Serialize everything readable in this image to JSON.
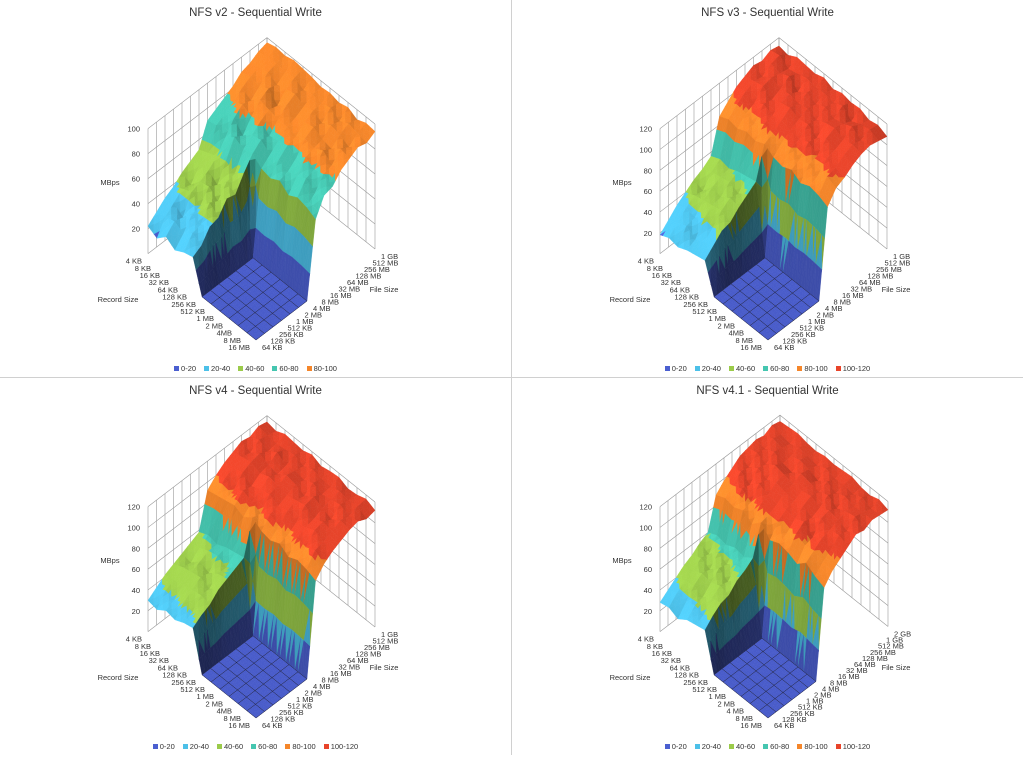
{
  "chart_data": [
    {
      "type": "surface",
      "title": "NFS v2 - Sequential Write",
      "xlabel": "File Size",
      "ylabel": "Record Size",
      "zlabel": "MBps",
      "zlim": [
        0,
        100
      ],
      "z_ticks": [
        "20",
        "40",
        "60",
        "80",
        "100"
      ],
      "record_sizes": [
        "4 KB",
        "8 KB",
        "16 KB",
        "32 KB",
        "64 KB",
        "128 KB",
        "256 KB",
        "512 KB",
        "1 MB",
        "2 MB",
        "4MB",
        "8 MB",
        "16 MB"
      ],
      "file_sizes": [
        "64 KB",
        "128 KB",
        "256 KB",
        "512 KB",
        "1 MB",
        "2 MB",
        "4 MB",
        "8 MB",
        "16 MB",
        "32 MB",
        "64 MB",
        "128 MB",
        "256 MB",
        "512 MB",
        "1 GB"
      ],
      "values": [
        [
          22,
          28,
          34,
          38,
          44,
          48,
          52,
          70,
          74,
          78,
          82,
          88,
          90,
          94,
          96
        ],
        [
          18,
          30,
          36,
          42,
          40,
          50,
          55,
          72,
          76,
          80,
          86,
          90,
          92,
          95,
          98
        ],
        [
          25,
          32,
          30,
          45,
          48,
          52,
          58,
          68,
          78,
          84,
          82,
          88,
          94,
          96,
          97
        ],
        [
          20,
          28,
          38,
          40,
          50,
          46,
          60,
          74,
          70,
          80,
          88,
          92,
          90,
          95,
          99
        ],
        [
          24,
          34,
          36,
          48,
          44,
          54,
          56,
          70,
          76,
          82,
          86,
          84,
          92,
          96,
          98
        ],
        [
          26,
          30,
          40,
          42,
          52,
          50,
          62,
          72,
          78,
          76,
          84,
          90,
          94,
          92,
          97
        ],
        [
          0,
          0,
          0,
          0,
          0,
          0,
          0,
          66,
          72,
          78,
          84,
          86,
          90,
          94,
          95
        ],
        [
          0,
          0,
          0,
          0,
          0,
          0,
          0,
          64,
          74,
          80,
          82,
          88,
          92,
          93,
          96
        ],
        [
          0,
          0,
          0,
          0,
          0,
          0,
          0,
          68,
          70,
          76,
          86,
          90,
          88,
          95,
          94
        ],
        [
          0,
          0,
          0,
          0,
          0,
          0,
          0,
          62,
          72,
          82,
          84,
          86,
          92,
          90,
          96
        ],
        [
          0,
          0,
          0,
          0,
          0,
          0,
          0,
          66,
          76,
          78,
          88,
          84,
          90,
          94,
          92
        ],
        [
          0,
          0,
          0,
          0,
          0,
          0,
          0,
          64,
          70,
          80,
          82,
          90,
          86,
          92,
          95
        ],
        [
          0,
          0,
          0,
          0,
          0,
          0,
          0,
          60,
          74,
          76,
          84,
          88,
          92,
          90,
          94
        ]
      ],
      "legend": [
        "0-20",
        "20-40",
        "40-60",
        "60-80",
        "80-100"
      ],
      "legend_position": "bottom"
    },
    {
      "type": "surface",
      "title": "NFS v3 - Sequential Write",
      "xlabel": "File Size",
      "ylabel": "Record Size",
      "zlabel": "MBps",
      "zlim": [
        0,
        120
      ],
      "z_ticks": [
        "20",
        "40",
        "60",
        "80",
        "100",
        "120"
      ],
      "record_sizes": [
        "4 KB",
        "8 KB",
        "16 KB",
        "32 KB",
        "64 KB",
        "128 KB",
        "256 KB",
        "512 KB",
        "1 MB",
        "2 MB",
        "4MB",
        "8 MB",
        "16 MB"
      ],
      "file_sizes": [
        "64 KB",
        "128 KB",
        "256 KB",
        "512 KB",
        "1 MB",
        "2 MB",
        "4 MB",
        "8 MB",
        "16 MB",
        "32 MB",
        "64 MB",
        "128 MB",
        "256 MB",
        "512 MB",
        "1 GB"
      ],
      "values": [
        [
          18,
          26,
          34,
          40,
          46,
          50,
          56,
          88,
          96,
          104,
          108,
          112,
          110,
          114,
          112
        ],
        [
          22,
          30,
          38,
          44,
          42,
          54,
          60,
          92,
          100,
          106,
          110,
          108,
          114,
          116,
          110
        ],
        [
          20,
          34,
          36,
          46,
          52,
          56,
          58,
          90,
          98,
          102,
          112,
          114,
          112,
          110,
          115
        ],
        [
          24,
          28,
          42,
          48,
          50,
          58,
          62,
          94,
          96,
          108,
          106,
          110,
          116,
          112,
          114
        ],
        [
          26,
          32,
          40,
          50,
          56,
          54,
          64,
          92,
          102,
          104,
          110,
          112,
          108,
          115,
          113
        ],
        [
          28,
          36,
          44,
          46,
          54,
          60,
          66,
          96,
          100,
          106,
          112,
          110,
          114,
          113,
          116
        ],
        [
          0,
          0,
          0,
          0,
          0,
          0,
          0,
          90,
          98,
          104,
          108,
          112,
          110,
          114,
          112
        ],
        [
          0,
          0,
          0,
          0,
          0,
          0,
          0,
          88,
          100,
          102,
          110,
          108,
          114,
          112,
          115
        ],
        [
          0,
          0,
          0,
          0,
          0,
          0,
          0,
          92,
          96,
          106,
          104,
          112,
          110,
          116,
          113
        ],
        [
          0,
          0,
          0,
          0,
          0,
          0,
          0,
          86,
          98,
          100,
          110,
          114,
          112,
          108,
          114
        ],
        [
          0,
          0,
          0,
          0,
          0,
          0,
          0,
          90,
          94,
          104,
          106,
          110,
          116,
          112,
          110
        ],
        [
          0,
          0,
          0,
          0,
          0,
          0,
          0,
          88,
          100,
          102,
          108,
          112,
          110,
          114,
          112
        ],
        [
          0,
          0,
          0,
          0,
          0,
          0,
          0,
          84,
          96,
          100,
          106,
          110,
          112,
          110,
          108
        ]
      ],
      "legend": [
        "0-20",
        "20-40",
        "40-60",
        "60-80",
        "80-100",
        "100-120"
      ],
      "legend_position": "bottom"
    },
    {
      "type": "surface",
      "title": "NFS v4 - Sequential Write",
      "xlabel": "File Size",
      "ylabel": "Record Size",
      "zlabel": "MBps",
      "zlim": [
        0,
        120
      ],
      "z_ticks": [
        "20",
        "40",
        "60",
        "80",
        "100",
        "120"
      ],
      "record_sizes": [
        "4 KB",
        "8 KB",
        "16 KB",
        "32 KB",
        "64 KB",
        "128 KB",
        "256 KB",
        "512 KB",
        "1 MB",
        "2 MB",
        "4MB",
        "8 MB",
        "16 MB"
      ],
      "file_sizes": [
        "64 KB",
        "128 KB",
        "256 KB",
        "512 KB",
        "1 MB",
        "2 MB",
        "4 MB",
        "8 MB",
        "16 MB",
        "32 MB",
        "64 MB",
        "128 MB",
        "256 MB",
        "512 MB",
        "1 GB"
      ],
      "values": [
        [
          30,
          36,
          42,
          46,
          50,
          54,
          58,
          92,
          100,
          106,
          110,
          114,
          112,
          116,
          114
        ],
        [
          28,
          40,
          44,
          50,
          48,
          56,
          62,
          94,
          104,
          108,
          112,
          110,
          116,
          114,
          112
        ],
        [
          34,
          38,
          46,
          52,
          56,
          60,
          60,
          96,
          100,
          110,
          114,
          116,
          112,
          113,
          116
        ],
        [
          32,
          42,
          48,
          54,
          52,
          62,
          64,
          98,
          106,
          104,
          110,
          112,
          118,
          114,
          115
        ],
        [
          36,
          40,
          50,
          50,
          58,
          58,
          66,
          94,
          102,
          108,
          114,
          110,
          112,
          116,
          114
        ],
        [
          38,
          44,
          48,
          56,
          60,
          64,
          68,
          100,
          98,
          110,
          112,
          116,
          114,
          112,
          117
        ],
        [
          0,
          0,
          0,
          0,
          0,
          0,
          0,
          94,
          104,
          106,
          110,
          114,
          112,
          116,
          113
        ],
        [
          0,
          0,
          0,
          0,
          0,
          0,
          0,
          92,
          100,
          108,
          112,
          110,
          116,
          114,
          115
        ],
        [
          0,
          0,
          0,
          0,
          0,
          0,
          0,
          96,
          98,
          104,
          114,
          116,
          112,
          113,
          116
        ],
        [
          0,
          0,
          0,
          0,
          0,
          0,
          0,
          90,
          102,
          106,
          108,
          112,
          114,
          116,
          112
        ],
        [
          0,
          0,
          0,
          0,
          0,
          0,
          0,
          94,
          100,
          110,
          112,
          108,
          116,
          114,
          113
        ],
        [
          0,
          0,
          0,
          0,
          0,
          0,
          0,
          92,
          104,
          106,
          110,
          114,
          112,
          115,
          116
        ],
        [
          0,
          0,
          0,
          0,
          0,
          0,
          0,
          88,
          98,
          104,
          108,
          112,
          114,
          110,
          112
        ]
      ],
      "legend": [
        "0-20",
        "20-40",
        "40-60",
        "60-80",
        "80-100",
        "100-120"
      ],
      "legend_position": "bottom"
    },
    {
      "type": "surface",
      "title": "NFS v4.1 - Sequential Write",
      "xlabel": "File Size",
      "ylabel": "Record Size",
      "zlabel": "MBps",
      "zlim": [
        0,
        120
      ],
      "z_ticks": [
        "20",
        "40",
        "60",
        "80",
        "100",
        "120"
      ],
      "record_sizes": [
        "4 KB",
        "8 KB",
        "16 KB",
        "32 KB",
        "64 KB",
        "128 KB",
        "256 KB",
        "512 KB",
        "1 MB",
        "2 MB",
        "4 MB",
        "8 MB",
        "16 MB"
      ],
      "file_sizes": [
        "64 KB",
        "128 KB",
        "256 KB",
        "512 KB",
        "1 MB",
        "2 MB",
        "4 MB",
        "8 MB",
        "16 MB",
        "32 MB",
        "64 MB",
        "128 MB",
        "256 MB",
        "512 MB",
        "1 GB",
        "2 GB"
      ],
      "values": [
        [
          28,
          34,
          40,
          46,
          50,
          56,
          60,
          90,
          98,
          104,
          110,
          112,
          114,
          112,
          116,
          114
        ],
        [
          30,
          38,
          44,
          48,
          54,
          52,
          64,
          94,
          100,
          108,
          106,
          114,
          112,
          116,
          114,
          115
        ],
        [
          26,
          36,
          46,
          52,
          50,
          60,
          62,
          92,
          104,
          102,
          112,
          110,
          116,
          114,
          112,
          116
        ],
        [
          32,
          40,
          42,
          50,
          58,
          56,
          66,
          96,
          98,
          110,
          108,
          116,
          112,
          113,
          115,
          114
        ],
        [
          34,
          38,
          48,
          54,
          52,
          62,
          64,
          90,
          102,
          106,
          112,
          114,
          110,
          116,
          114,
          113
        ],
        [
          36,
          44,
          50,
          52,
          60,
          64,
          70,
          98,
          100,
          104,
          110,
          112,
          116,
          114,
          112,
          115
        ],
        [
          0,
          0,
          0,
          0,
          0,
          0,
          0,
          88,
          100,
          106,
          108,
          112,
          114,
          110,
          116,
          114
        ],
        [
          0,
          0,
          0,
          0,
          0,
          0,
          0,
          92,
          96,
          104,
          110,
          114,
          112,
          116,
          113,
          115
        ],
        [
          0,
          0,
          0,
          0,
          0,
          0,
          0,
          90,
          102,
          108,
          106,
          110,
          116,
          112,
          114,
          116
        ],
        [
          0,
          0,
          0,
          0,
          0,
          0,
          0,
          86,
          98,
          100,
          112,
          114,
          110,
          116,
          112,
          113
        ],
        [
          0,
          0,
          0,
          0,
          0,
          0,
          0,
          94,
          100,
          106,
          108,
          112,
          114,
          113,
          116,
          112
        ],
        [
          0,
          0,
          0,
          0,
          0,
          0,
          0,
          88,
          96,
          102,
          110,
          108,
          116,
          114,
          112,
          115
        ],
        [
          0,
          0,
          0,
          0,
          0,
          0,
          0,
          84,
          94,
          100,
          106,
          112,
          110,
          114,
          113,
          112
        ]
      ],
      "legend": [
        "0-20",
        "20-40",
        "40-60",
        "60-80",
        "80-100",
        "100-120"
      ],
      "legend_position": "bottom"
    }
  ],
  "colors": {
    "bands": [
      "#4b5fd0",
      "#4cc0e8",
      "#9bcb4a",
      "#45c6b0",
      "#f5862a",
      "#e8442a"
    ],
    "grid": "#9a9a9a"
  }
}
